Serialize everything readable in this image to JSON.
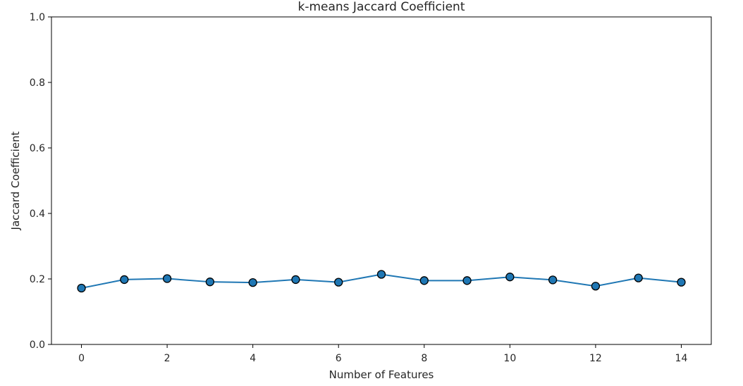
{
  "chart_data": {
    "type": "line",
    "title": "k-means Jaccard Coefficient",
    "xlabel": "Number of Features",
    "ylabel": "Jaccard Coefficient",
    "xlim": [
      -0.7,
      14.7
    ],
    "ylim": [
      0.0,
      1.0
    ],
    "xticks": [
      0,
      2,
      4,
      6,
      8,
      10,
      12,
      14
    ],
    "xtick_labels": [
      "0",
      "2",
      "4",
      "6",
      "8",
      "10",
      "12",
      "14"
    ],
    "yticks": [
      0.0,
      0.2,
      0.4,
      0.6,
      0.8,
      1.0
    ],
    "ytick_labels": [
      "0.0",
      "0.2",
      "0.4",
      "0.6",
      "0.8",
      "1.0"
    ],
    "grid": false,
    "series": [
      {
        "x": [
          0,
          1,
          2,
          3,
          4,
          5,
          6,
          7,
          8,
          9,
          10,
          11,
          12,
          13,
          14
        ],
        "values": [
          0.172,
          0.198,
          0.201,
          0.191,
          0.189,
          0.198,
          0.19,
          0.214,
          0.195,
          0.195,
          0.206,
          0.197,
          0.178,
          0.203,
          0.19
        ],
        "color": "#1f77b4",
        "marker": "circle",
        "marker_edge": "#000000"
      }
    ]
  }
}
